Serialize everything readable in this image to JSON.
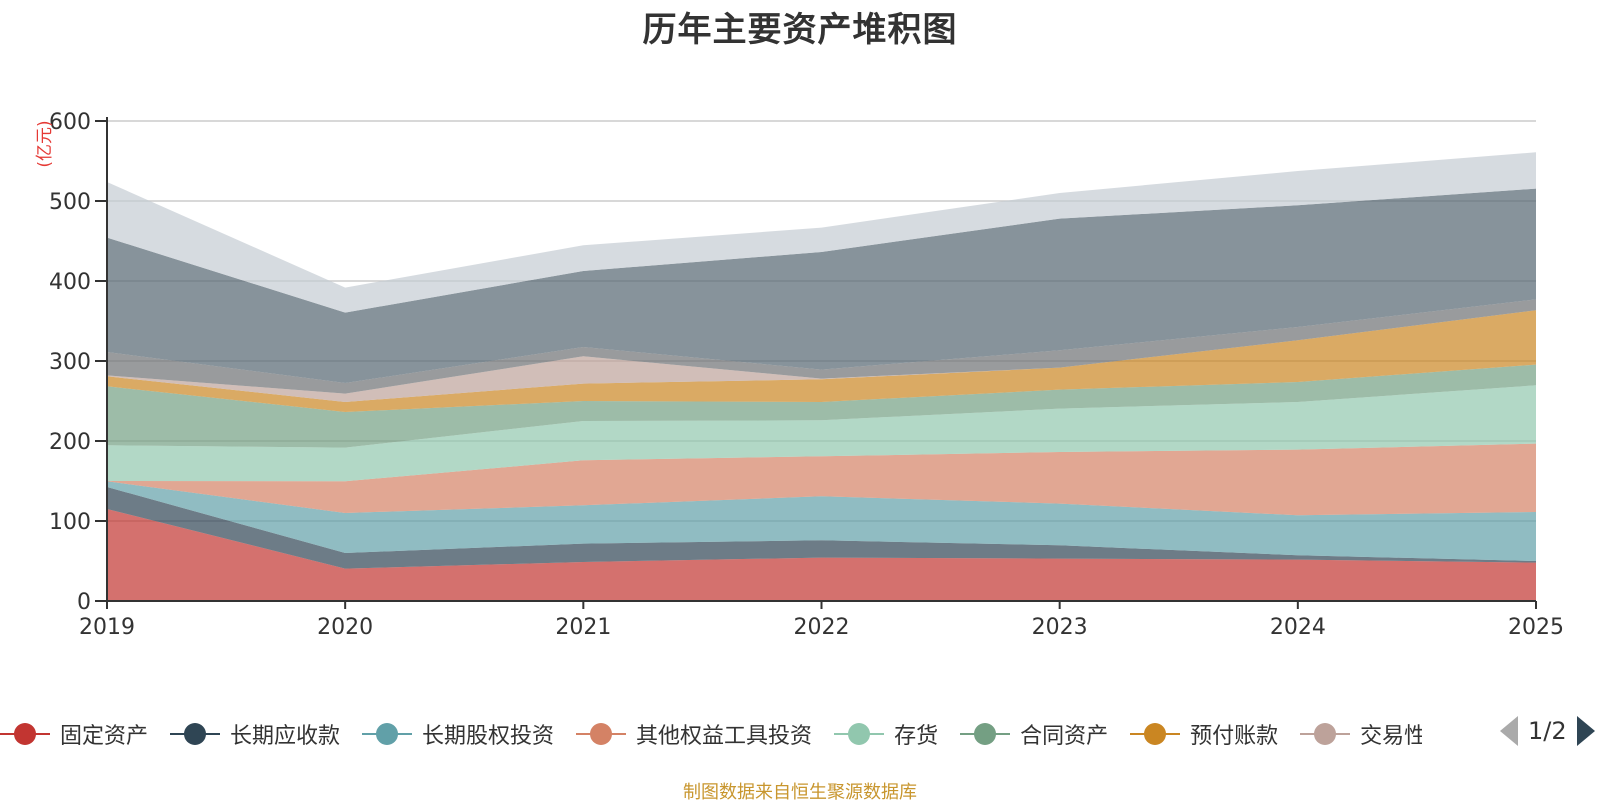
{
  "chart_data": {
    "type": "area",
    "stacked": true,
    "title": "历年主要资产堆积图",
    "xlabel": "",
    "ylabel": "(亿元)",
    "categories": [
      "2019",
      "2020",
      "2021",
      "2022",
      "2023",
      "2024",
      "2025"
    ],
    "ylim": [
      0,
      600
    ],
    "yticks": [
      0,
      100,
      200,
      300,
      400,
      500,
      600
    ],
    "grid": true,
    "legend_position": "bottom",
    "series": [
      {
        "name": "固定资产",
        "color": "#c23531",
        "values": [
          115.0,
          40.5,
          48.8,
          54.2,
          53.0,
          51.7,
          48.0
        ]
      },
      {
        "name": "长期应收款",
        "color": "#2f4554",
        "values": [
          27.5,
          19.5,
          22.9,
          21.7,
          16.6,
          5.4,
          2.0
        ]
      },
      {
        "name": "长期股权投资",
        "color": "#61a0a8",
        "values": [
          7.1,
          50.0,
          47.9,
          55.0,
          52.1,
          50.0,
          61.3
        ]
      },
      {
        "name": "其他权益工具投资",
        "color": "#d48265",
        "values": [
          0.4,
          39.6,
          56.3,
          50.0,
          64.6,
          82.1,
          85.4
        ]
      },
      {
        "name": "存货",
        "color": "#91c7ae",
        "values": [
          44.6,
          42.1,
          49.1,
          45.0,
          54.2,
          59.6,
          72.9
        ]
      },
      {
        "name": "合同资产",
        "color": "#749f83",
        "values": [
          73.8,
          44.6,
          25.0,
          22.9,
          23.7,
          25.0,
          25.9
        ]
      },
      {
        "name": "预付账款",
        "color": "#ca8622",
        "values": [
          12.5,
          12.5,
          21.7,
          28.3,
          27.5,
          52.1,
          67.9
        ]
      },
      {
        "name": "交易性",
        "color": "#bda29a",
        "values": [
          1.1,
          10.4,
          34.2,
          0.9,
          0.0,
          0.0,
          0.0
        ]
      },
      {
        "name": null,
        "color": "#6e7074",
        "values": [
          29.3,
          13.3,
          11.6,
          11.2,
          21.7,
          16.6,
          13.6
        ]
      },
      {
        "name": null,
        "color": "#546570",
        "values": [
          143.0,
          88.0,
          95.0,
          147.1,
          164.6,
          152.1,
          138.5
        ]
      },
      {
        "name": null,
        "color": "#c4ccd3",
        "values": [
          69.5,
          31.2,
          32.1,
          30.4,
          32.0,
          42.9,
          45.4
        ]
      }
    ]
  },
  "legend": {
    "items": [
      {
        "label": "固定资产",
        "color": "#c23531"
      },
      {
        "label": "长期应收款",
        "color": "#2f4554"
      },
      {
        "label": "长期股权投资",
        "color": "#61a0a8"
      },
      {
        "label": "其他权益工具投资",
        "color": "#d48265"
      },
      {
        "label": "存货",
        "color": "#91c7ae"
      },
      {
        "label": "合同资产",
        "color": "#749f83"
      },
      {
        "label": "预付账款",
        "color": "#ca8622"
      },
      {
        "label": "交易性",
        "color": "#bda29a"
      }
    ],
    "pager": "1/2"
  },
  "footer": "制图数据来自恒生聚源数据库"
}
